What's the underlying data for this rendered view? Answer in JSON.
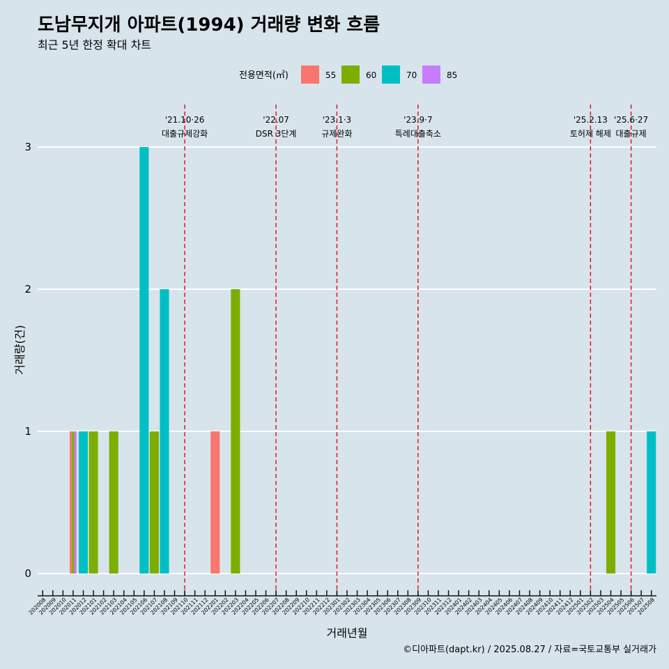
{
  "title": "도남무지개 아파트(1994) 거래량 변화 흐름",
  "subtitle": "최근 5년 한정 확대 차트",
  "caption": "©디아파트(dapt.kr) / 2025.08.27 / 자료=국토교통부 실거래가",
  "legend_title": "전용면적(㎡)",
  "colors": {
    "55": "#f8766d",
    "60": "#7cae00",
    "70": "#00bfc4",
    "85": "#c77cff"
  },
  "chart_data": {
    "type": "bar",
    "xlabel": "거래년월",
    "ylabel": "거래량(건)",
    "ylim": [
      0,
      3
    ],
    "yticks": [
      0,
      1,
      2,
      3
    ],
    "grid": true,
    "legend_position": "top",
    "categories": [
      "202008",
      "202009",
      "202010",
      "202011",
      "202012",
      "202101",
      "202102",
      "202103",
      "202104",
      "202105",
      "202106",
      "202107",
      "202108",
      "202109",
      "202110",
      "202111",
      "202112",
      "202201",
      "202202",
      "202203",
      "202204",
      "202205",
      "202206",
      "202207",
      "202208",
      "202209",
      "202210",
      "202211",
      "202212",
      "202301",
      "202302",
      "202303",
      "202304",
      "202305",
      "202306",
      "202307",
      "202308",
      "202309",
      "202310",
      "202311",
      "202312",
      "202401",
      "202402",
      "202403",
      "202404",
      "202405",
      "202406",
      "202407",
      "202408",
      "202409",
      "202410",
      "202411",
      "202412",
      "202501",
      "202502",
      "202503",
      "202504",
      "202505",
      "202506",
      "202507",
      "202508"
    ],
    "series": [
      {
        "name": "55",
        "values": [
          0,
          0,
          0,
          1,
          0,
          0,
          0,
          0,
          0,
          0,
          0,
          0,
          0,
          0,
          0,
          0,
          0,
          1,
          0,
          0,
          0,
          0,
          0,
          0,
          0,
          0,
          0,
          0,
          0,
          0,
          0,
          0,
          0,
          0,
          0,
          0,
          0,
          0,
          0,
          0,
          0,
          0,
          0,
          0,
          0,
          0,
          0,
          0,
          0,
          0,
          0,
          0,
          0,
          0,
          0,
          0,
          0,
          0,
          0,
          0,
          0
        ]
      },
      {
        "name": "60",
        "values": [
          0,
          0,
          0,
          1,
          0,
          1,
          0,
          1,
          0,
          0,
          0,
          1,
          0,
          0,
          0,
          0,
          0,
          0,
          0,
          2,
          0,
          0,
          0,
          0,
          0,
          0,
          0,
          0,
          0,
          0,
          0,
          0,
          0,
          0,
          0,
          0,
          0,
          0,
          0,
          0,
          0,
          0,
          0,
          0,
          0,
          0,
          0,
          0,
          0,
          0,
          0,
          0,
          0,
          0,
          0,
          0,
          1,
          0,
          0,
          0,
          0
        ]
      },
      {
        "name": "70",
        "values": [
          0,
          0,
          0,
          0,
          1,
          0,
          0,
          0,
          0,
          0,
          3,
          0,
          2,
          0,
          0,
          0,
          0,
          0,
          0,
          0,
          0,
          0,
          0,
          0,
          0,
          0,
          0,
          0,
          0,
          0,
          0,
          0,
          0,
          0,
          0,
          0,
          0,
          0,
          0,
          0,
          0,
          0,
          0,
          0,
          0,
          0,
          0,
          0,
          0,
          0,
          0,
          0,
          0,
          0,
          0,
          0,
          0,
          0,
          0,
          0,
          1
        ]
      },
      {
        "name": "85",
        "values": [
          0,
          0,
          0,
          1,
          0,
          0,
          0,
          0,
          0,
          0,
          0,
          0,
          0,
          0,
          0,
          0,
          0,
          0,
          0,
          0,
          0,
          0,
          0,
          0,
          0,
          0,
          0,
          0,
          0,
          0,
          0,
          0,
          0,
          0,
          0,
          0,
          0,
          0,
          0,
          0,
          0,
          0,
          0,
          0,
          0,
          0,
          0,
          0,
          0,
          0,
          0,
          0,
          0,
          0,
          0,
          0,
          0,
          0,
          0,
          0,
          0
        ]
      }
    ],
    "events": [
      {
        "x": "202110",
        "date": "'21.10·26",
        "label": "대출규제강화"
      },
      {
        "x": "202207",
        "date": "'22.07",
        "label": "DSR 3단계"
      },
      {
        "x": "202301",
        "date": "'23.1·3",
        "label": "규제완화"
      },
      {
        "x": "202309",
        "date": "'23.9·7",
        "label": "특례대출축소"
      },
      {
        "x": "202502",
        "date": "'25.2.13",
        "label": "토허제 해제"
      },
      {
        "x": "202506",
        "date": "'25.6·27",
        "label": "대출규제"
      }
    ]
  }
}
